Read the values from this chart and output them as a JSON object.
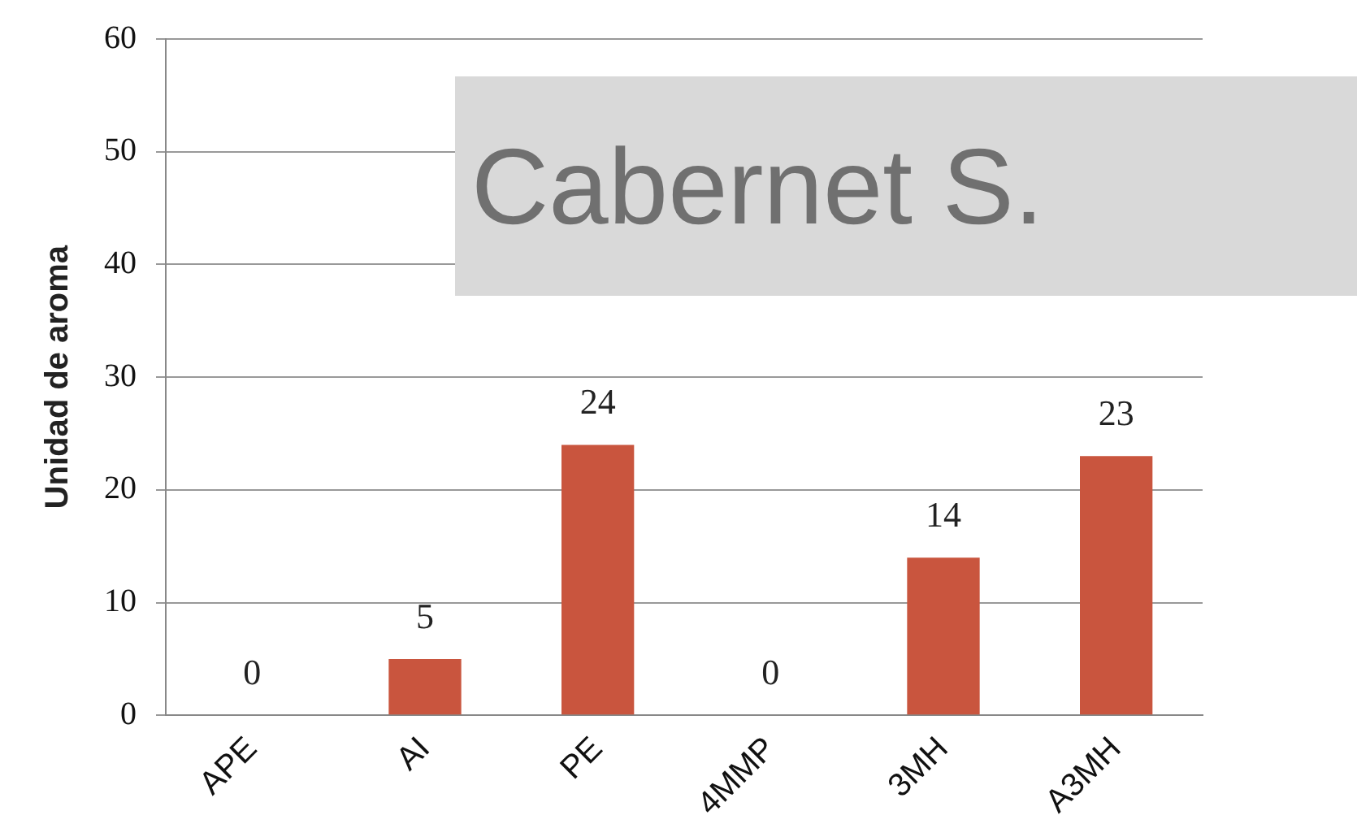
{
  "chart_data": {
    "type": "bar",
    "title": "Cabernet S.",
    "ylabel": "Unidad de aroma",
    "categories": [
      "APE",
      "AI",
      "PE",
      "4MMP",
      "3MH",
      "A3MH"
    ],
    "values": [
      0,
      5,
      24,
      0,
      14,
      23
    ],
    "color": "#c9553e",
    "ylim": [
      0,
      60
    ],
    "yticks": [
      0,
      10,
      20,
      30,
      40,
      50,
      60
    ],
    "grid": "y",
    "legend": false,
    "data_labels": true
  }
}
